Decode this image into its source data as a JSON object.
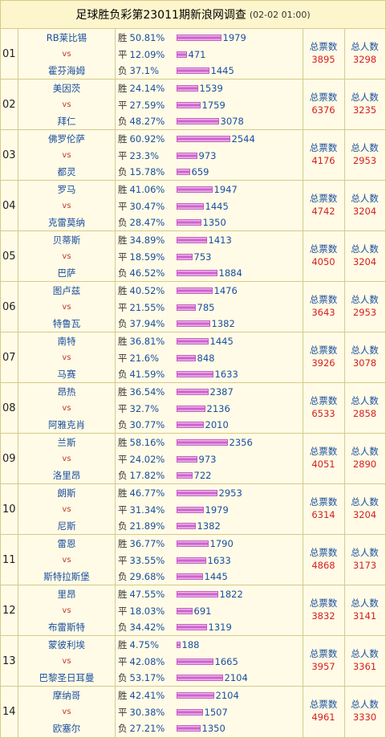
{
  "title": {
    "main": "足球胜负彩第23011期新浪网调查",
    "time": "(02-02 01:00)"
  },
  "labels": {
    "win": "胜",
    "draw": "平",
    "lose": "负",
    "vs": "vs",
    "votes": "总票数",
    "people": "总人数"
  },
  "matches": [
    {
      "no": "01",
      "home": "RB莱比锡",
      "away": "霍芬海姆",
      "win": {
        "pct": "50.81%",
        "count": "1979",
        "frac": 0.5081
      },
      "draw": {
        "pct": "12.09%",
        "count": "471",
        "frac": 0.1209
      },
      "lose": {
        "pct": "37.1%",
        "count": "1445",
        "frac": 0.371
      },
      "votes": "3895",
      "people": "3298"
    },
    {
      "no": "02",
      "home": "美因茨",
      "away": "拜仁",
      "win": {
        "pct": "24.14%",
        "count": "1539",
        "frac": 0.2414
      },
      "draw": {
        "pct": "27.59%",
        "count": "1759",
        "frac": 0.2759
      },
      "lose": {
        "pct": "48.27%",
        "count": "3078",
        "frac": 0.4827
      },
      "votes": "6376",
      "people": "3235"
    },
    {
      "no": "03",
      "home": "佛罗伦萨",
      "away": "都灵",
      "win": {
        "pct": "60.92%",
        "count": "2544",
        "frac": 0.6092
      },
      "draw": {
        "pct": "23.3%",
        "count": "973",
        "frac": 0.233
      },
      "lose": {
        "pct": "15.78%",
        "count": "659",
        "frac": 0.1578
      },
      "votes": "4176",
      "people": "2953"
    },
    {
      "no": "04",
      "home": "罗马",
      "away": "克雷莫纳",
      "win": {
        "pct": "41.06%",
        "count": "1947",
        "frac": 0.4106
      },
      "draw": {
        "pct": "30.47%",
        "count": "1445",
        "frac": 0.3047
      },
      "lose": {
        "pct": "28.47%",
        "count": "1350",
        "frac": 0.2847
      },
      "votes": "4742",
      "people": "3204"
    },
    {
      "no": "05",
      "home": "贝蒂斯",
      "away": "巴萨",
      "win": {
        "pct": "34.89%",
        "count": "1413",
        "frac": 0.3489
      },
      "draw": {
        "pct": "18.59%",
        "count": "753",
        "frac": 0.1859
      },
      "lose": {
        "pct": "46.52%",
        "count": "1884",
        "frac": 0.4652
      },
      "votes": "4050",
      "people": "3204"
    },
    {
      "no": "06",
      "home": "图卢兹",
      "away": "特鲁瓦",
      "win": {
        "pct": "40.52%",
        "count": "1476",
        "frac": 0.4052
      },
      "draw": {
        "pct": "21.55%",
        "count": "785",
        "frac": 0.2155
      },
      "lose": {
        "pct": "37.94%",
        "count": "1382",
        "frac": 0.3794
      },
      "votes": "3643",
      "people": "2953"
    },
    {
      "no": "07",
      "home": "南特",
      "away": "马赛",
      "win": {
        "pct": "36.81%",
        "count": "1445",
        "frac": 0.3681
      },
      "draw": {
        "pct": "21.6%",
        "count": "848",
        "frac": 0.216
      },
      "lose": {
        "pct": "41.59%",
        "count": "1633",
        "frac": 0.4159
      },
      "votes": "3926",
      "people": "3078"
    },
    {
      "no": "08",
      "home": "昂热",
      "away": "阿雅克肖",
      "win": {
        "pct": "36.54%",
        "count": "2387",
        "frac": 0.3654
      },
      "draw": {
        "pct": "32.7%",
        "count": "2136",
        "frac": 0.327
      },
      "lose": {
        "pct": "30.77%",
        "count": "2010",
        "frac": 0.3077
      },
      "votes": "6533",
      "people": "2858"
    },
    {
      "no": "09",
      "home": "兰斯",
      "away": "洛里昂",
      "win": {
        "pct": "58.16%",
        "count": "2356",
        "frac": 0.5816
      },
      "draw": {
        "pct": "24.02%",
        "count": "973",
        "frac": 0.2402
      },
      "lose": {
        "pct": "17.82%",
        "count": "722",
        "frac": 0.1782
      },
      "votes": "4051",
      "people": "2890"
    },
    {
      "no": "10",
      "home": "朗斯",
      "away": "尼斯",
      "win": {
        "pct": "46.77%",
        "count": "2953",
        "frac": 0.4677
      },
      "draw": {
        "pct": "31.34%",
        "count": "1979",
        "frac": 0.3134
      },
      "lose": {
        "pct": "21.89%",
        "count": "1382",
        "frac": 0.2189
      },
      "votes": "6314",
      "people": "3204"
    },
    {
      "no": "11",
      "home": "雷恩",
      "away": "斯特拉斯堡",
      "win": {
        "pct": "36.77%",
        "count": "1790",
        "frac": 0.3677
      },
      "draw": {
        "pct": "33.55%",
        "count": "1633",
        "frac": 0.3355
      },
      "lose": {
        "pct": "29.68%",
        "count": "1445",
        "frac": 0.2968
      },
      "votes": "4868",
      "people": "3173"
    },
    {
      "no": "12",
      "home": "里昂",
      "away": "布雷斯特",
      "win": {
        "pct": "47.55%",
        "count": "1822",
        "frac": 0.4755
      },
      "draw": {
        "pct": "18.03%",
        "count": "691",
        "frac": 0.1803
      },
      "lose": {
        "pct": "34.42%",
        "count": "1319",
        "frac": 0.3442
      },
      "votes": "3832",
      "people": "3141"
    },
    {
      "no": "13",
      "home": "蒙彼利埃",
      "away": "巴黎圣日耳曼",
      "win": {
        "pct": "4.75%",
        "count": "188",
        "frac": 0.0475
      },
      "draw": {
        "pct": "42.08%",
        "count": "1665",
        "frac": 0.4208
      },
      "lose": {
        "pct": "53.17%",
        "count": "2104",
        "frac": 0.5317
      },
      "votes": "3957",
      "people": "3361"
    },
    {
      "no": "14",
      "home": "摩纳哥",
      "away": "欧塞尔",
      "win": {
        "pct": "42.41%",
        "count": "2104",
        "frac": 0.4241
      },
      "draw": {
        "pct": "30.38%",
        "count": "1507",
        "frac": 0.3038
      },
      "lose": {
        "pct": "27.21%",
        "count": "1350",
        "frac": 0.2721
      },
      "votes": "4961",
      "people": "3330"
    }
  ]
}
